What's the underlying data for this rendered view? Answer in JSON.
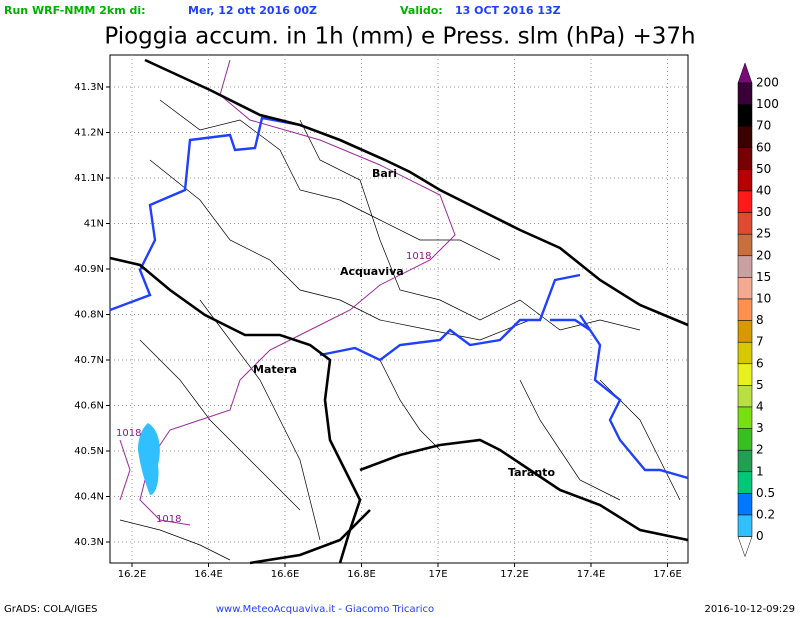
{
  "header": {
    "run_label": "Run WRF-NMM 2km di:",
    "run_date": "Mer, 12 ott 2016 00Z",
    "valid_label": "Valido:",
    "valid_date": "13 OCT 2016 13Z",
    "title": "Pioggia accum. in 1h (mm) e Press. slm (hPa) +37h"
  },
  "map": {
    "lat_ticks": [
      {
        "value": 41.3,
        "label": "41.3N"
      },
      {
        "value": 41.2,
        "label": "41.2N"
      },
      {
        "value": 41.1,
        "label": "41.1N"
      },
      {
        "value": 41,
        "label": "41N"
      },
      {
        "value": 40.9,
        "label": "40.9N"
      },
      {
        "value": 40.8,
        "label": "40.8N"
      },
      {
        "value": 40.7,
        "label": "40.7N"
      },
      {
        "value": 40.6,
        "label": "40.6N"
      },
      {
        "value": 40.5,
        "label": "40.5N"
      },
      {
        "value": 40.4,
        "label": "40.4N"
      },
      {
        "value": 40.3,
        "label": "40.3N"
      }
    ],
    "lon_ticks": [
      {
        "value": 16.2,
        "label": "16.2E"
      },
      {
        "value": 16.4,
        "label": "16.4E"
      },
      {
        "value": 16.6,
        "label": "16.6E"
      },
      {
        "value": 16.8,
        "label": "16.8E"
      },
      {
        "value": 17,
        "label": "17E"
      },
      {
        "value": 17.2,
        "label": "17.2E"
      },
      {
        "value": 17.4,
        "label": "17.4E"
      },
      {
        "value": 17.6,
        "label": "17.6E"
      }
    ],
    "cities": [
      "Bari",
      "Acquaviva",
      "Matera",
      "Taranto"
    ],
    "isobar_labels": [
      "1018",
      "1018",
      "1018"
    ]
  },
  "colorbar": {
    "levels": [
      200,
      100,
      70,
      60,
      50,
      40,
      30,
      25,
      20,
      15,
      10,
      8,
      7,
      6,
      5,
      4,
      3,
      2,
      1,
      0.5,
      0.2,
      0
    ],
    "colors": [
      "#7a0a78",
      "#3a0038",
      "#000000",
      "#3c0000",
      "#780000",
      "#b80000",
      "#ff1a1a",
      "#e04a30",
      "#c8703c",
      "#caa0a0",
      "#f4aa90",
      "#ff9050",
      "#d89800",
      "#d8c800",
      "#e8f020",
      "#b8e040",
      "#78e010",
      "#38c020",
      "#20a050",
      "#00c878",
      "#0078ff",
      "#30c0ff",
      "#ffffff"
    ]
  },
  "footer": {
    "left": "GrADS: COLA/IGES",
    "center": "www.MeteoAcquaviva.it  -  Giacomo Tricarico",
    "right": "2016-10-12-09:29"
  }
}
